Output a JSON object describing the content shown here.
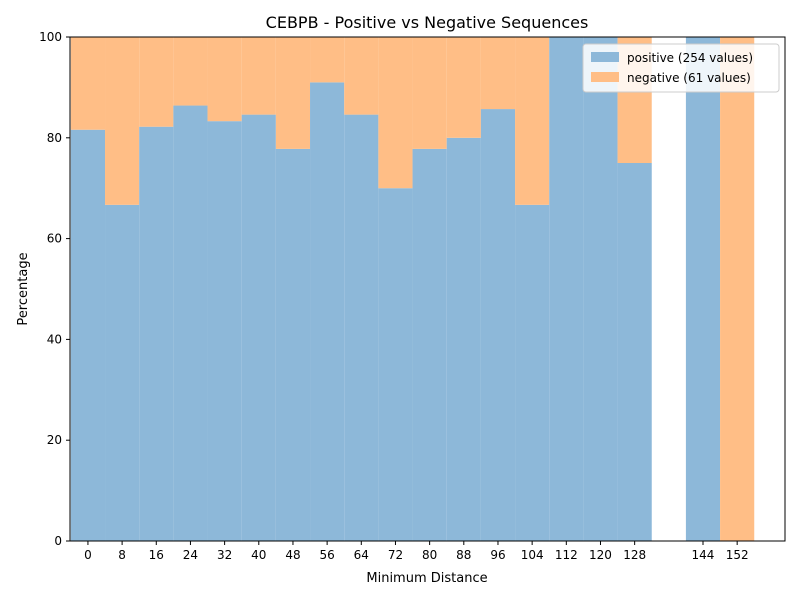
{
  "chart_data": {
    "type": "bar",
    "stacked": true,
    "title": "CEBPB - Positive vs Negative Sequences",
    "xlabel": "Minimum Distance",
    "ylabel": "Percentage",
    "ylim": [
      0,
      100
    ],
    "yticks": [
      0,
      20,
      40,
      60,
      80,
      100
    ],
    "categories": [
      "0",
      "8",
      "16",
      "24",
      "32",
      "40",
      "48",
      "56",
      "64",
      "72",
      "80",
      "88",
      "96",
      "104",
      "112",
      "120",
      "128",
      "144",
      "152"
    ],
    "x": [
      0,
      8,
      16,
      24,
      32,
      40,
      48,
      56,
      64,
      72,
      80,
      88,
      96,
      104,
      112,
      120,
      128,
      144,
      152
    ],
    "series": [
      {
        "name": "positive (254 values)",
        "color": "#8db8d9",
        "values": [
          81.6,
          66.7,
          82.2,
          86.4,
          83.3,
          84.6,
          77.8,
          91.0,
          84.6,
          70.0,
          77.8,
          80.0,
          85.7,
          66.7,
          100,
          100,
          75.0,
          100,
          0
        ]
      },
      {
        "name": "negative (61 values)",
        "color": "#ffbe86",
        "values": [
          18.4,
          33.3,
          17.8,
          13.6,
          16.7,
          15.4,
          22.2,
          9.0,
          15.4,
          30.0,
          22.2,
          20.0,
          14.3,
          33.3,
          0,
          0,
          25.0,
          0,
          100
        ]
      }
    ],
    "legend_position": "top-right",
    "grid": false
  }
}
